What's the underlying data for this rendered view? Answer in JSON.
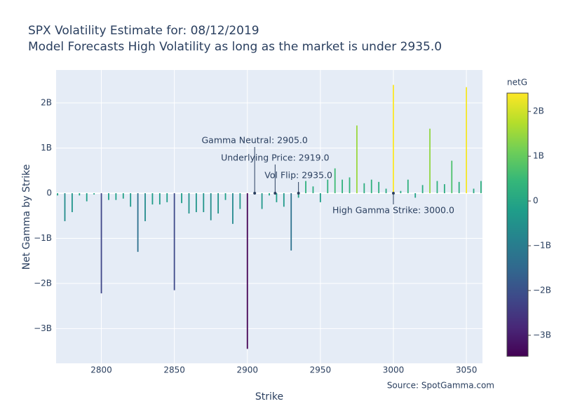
{
  "chart_data": {
    "type": "bar",
    "title": "SPX Volatility Estimate for: 08/12/2019",
    "subtitle": "Model Forecasts High Volatility as long as the market is under 2935.0",
    "x_label": "Strike",
    "y_label": "Net Gamma by Strike",
    "source": "Source: SpotGamma.com",
    "colorscale": "Viridis",
    "colorbar_title": "netG",
    "clim": [
      -3.47,
      2.41
    ],
    "colorbar_ticks": [
      {
        "value": 2,
        "label": "2B"
      },
      {
        "value": 1,
        "label": "1B"
      },
      0,
      {
        "value": -1,
        "label": "−1B"
      },
      {
        "value": -2,
        "label": "−2B"
      },
      {
        "value": -3,
        "label": "−3B"
      }
    ],
    "x": [
      2770,
      2775,
      2780,
      2785,
      2790,
      2795,
      2800,
      2805,
      2810,
      2815,
      2820,
      2825,
      2830,
      2835,
      2840,
      2845,
      2850,
      2855,
      2860,
      2865,
      2870,
      2875,
      2880,
      2885,
      2890,
      2895,
      2900,
      2905,
      2910,
      2915,
      2920,
      2925,
      2930,
      2935,
      2940,
      2945,
      2950,
      2955,
      2960,
      2965,
      2970,
      2975,
      2980,
      2985,
      2990,
      2995,
      3000,
      3005,
      3010,
      3015,
      3020,
      3025,
      3030,
      3035,
      3040,
      3045,
      3050,
      3055,
      3060
    ],
    "values": [
      -0.05,
      -0.62,
      -0.42,
      -0.05,
      -0.18,
      -0.03,
      -2.22,
      -0.15,
      -0.15,
      -0.12,
      -0.3,
      -1.3,
      -0.62,
      -0.25,
      -0.25,
      -0.2,
      -2.15,
      -0.22,
      -0.45,
      -0.42,
      -0.42,
      -0.6,
      -0.45,
      -0.15,
      -0.68,
      -0.35,
      -3.45,
      0.02,
      -0.35,
      -0.05,
      -0.2,
      -0.3,
      -1.27,
      -0.1,
      0.27,
      0.15,
      -0.2,
      0.3,
      0.55,
      0.3,
      0.35,
      1.5,
      0.22,
      0.3,
      0.25,
      0.1,
      2.4,
      0.05,
      0.3,
      -0.1,
      0.18,
      1.43,
      0.27,
      0.2,
      0.72,
      0.25,
      2.35,
      0.1,
      0.27
    ],
    "xlim": [
      2769,
      3061
    ],
    "xticks": [
      2800,
      2850,
      2900,
      2950,
      3000,
      3050
    ],
    "ylim": [
      -3.77,
      2.73
    ],
    "yticks": [
      {
        "value": -3,
        "label": "−3B"
      },
      {
        "value": -2,
        "label": "−2B"
      },
      {
        "value": -1,
        "label": "−1B"
      },
      0,
      {
        "value": 1,
        "label": "1B"
      },
      {
        "value": 2,
        "label": "2B"
      }
    ],
    "grid": true,
    "annotations": [
      {
        "text": "Gamma Neutral: 2905.0",
        "x": 2905
      },
      {
        "text": "Underlying Price: 2919.0",
        "x": 2919
      },
      {
        "text": "Vol Flip: 2935.0",
        "x": 2935
      },
      {
        "text": "High Gamma Strike: 3000.0",
        "x": 3000
      }
    ]
  }
}
